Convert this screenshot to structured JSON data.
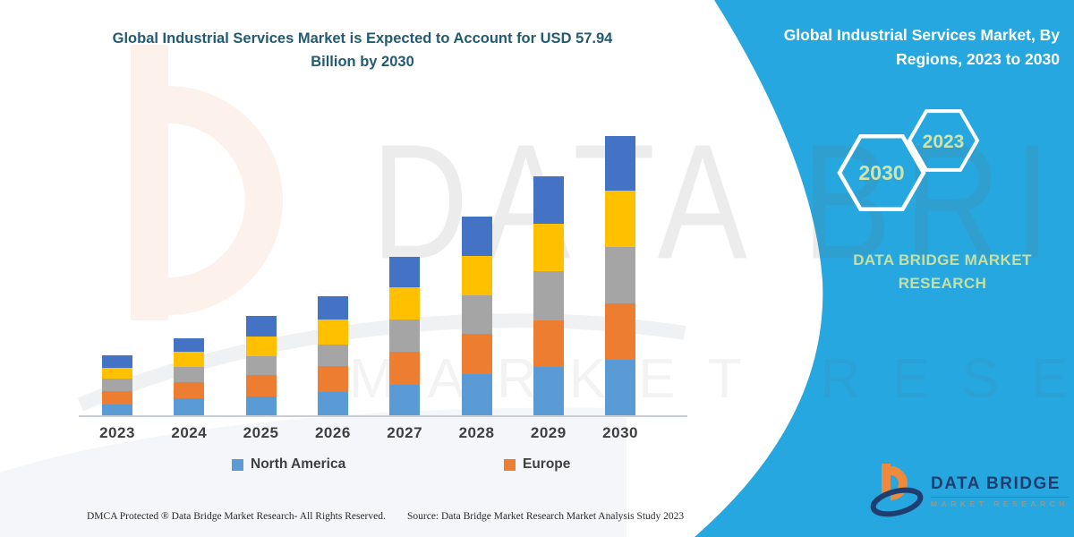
{
  "title": "Global Industrial Services Market is Expected to Account for USD 57.94 Billion by 2030",
  "side_panel": {
    "heading": "Global Industrial Services Market, By Regions, 2023 to 2030",
    "hexagon_large": "2030",
    "hexagon_small": "2023",
    "brand_caption": "DATA BRIDGE MARKET RESEARCH",
    "panel_color": "#27A7DF",
    "caption_color": "#C6DFA3"
  },
  "chart_data": {
    "type": "bar",
    "stacked": true,
    "title": "Global Industrial Services Market is Expected to Account for USD 57.94 Billion by 2030",
    "unit": "USD Billion",
    "xlabel": "",
    "ylabel": "",
    "ylim": [
      0,
      58
    ],
    "grid": false,
    "y_axis_shown": false,
    "legend_position": "bottom",
    "categories": [
      "2023",
      "2024",
      "2025",
      "2026",
      "2027",
      "2028",
      "2029",
      "2030"
    ],
    "series": [
      {
        "name": "North America",
        "color": "#5B9BD5",
        "values": [
          2.2,
          3.5,
          3.9,
          4.8,
          6.3,
          8.5,
          10.0,
          11.5
        ]
      },
      {
        "name": "Europe",
        "color": "#ED7D31",
        "values": [
          2.8,
          3.3,
          4.5,
          5.4,
          6.9,
          8.4,
          9.7,
          11.7
        ]
      },
      {
        "name": "(unlabeled)",
        "color": "#A5A5A5",
        "values": [
          2.6,
          3.2,
          3.9,
          4.5,
          6.7,
          8.0,
          10.2,
          11.7
        ]
      },
      {
        "name": "(unlabeled)",
        "color": "#FFC000",
        "values": [
          2.2,
          3.2,
          4.1,
          5.2,
          6.7,
          8.2,
          9.8,
          11.7
        ]
      },
      {
        "name": "(unlabeled)",
        "color": "#4472C4",
        "values": [
          2.6,
          2.8,
          4.3,
          4.8,
          6.3,
          8.2,
          10.0,
          11.3
        ]
      }
    ],
    "totals": [
      12.4,
      16.0,
      20.7,
      24.7,
      32.9,
      41.3,
      49.7,
      57.9
    ],
    "legend_visible": [
      "North America",
      "Europe"
    ]
  },
  "legend": {
    "items": [
      {
        "label": "North America",
        "color": "#5B9BD5"
      },
      {
        "label": "Europe",
        "color": "#ED7D31"
      }
    ]
  },
  "watermark": {
    "line1": "DATA BRIDGE",
    "line2": "MARKET RESEARCH"
  },
  "corner_logo": {
    "name": "DATA BRIDGE",
    "subtext": "MARKET RESEARCH"
  },
  "footer": {
    "left": "DMCA Protected ® Data Bridge Market Research-  All Rights Reserved.",
    "right": "Source: Data Bridge Market Research  Market Analysis Study 2023"
  }
}
